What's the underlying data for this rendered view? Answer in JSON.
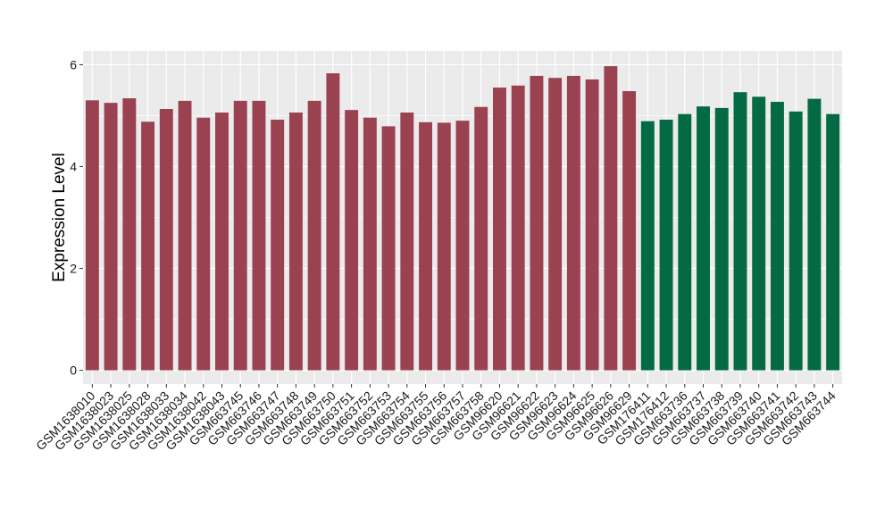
{
  "chart_data": {
    "type": "bar",
    "title": "",
    "xlabel": "",
    "ylabel": "Expression Level",
    "ylim": [
      -0.27,
      6.27
    ],
    "yticks": [
      0,
      2,
      4,
      6
    ],
    "grid": true,
    "legend": "none",
    "colors": {
      "group1": "#9b4250",
      "group2": "#046a43",
      "panel": "#ebebeb",
      "grid": "#ffffff"
    },
    "categories": [
      "GSM1638010",
      "GSM1638023",
      "GSM1638025",
      "GSM1638028",
      "GSM1638033",
      "GSM1638034",
      "GSM1638042",
      "GSM1638043",
      "GSM663745",
      "GSM663746",
      "GSM663747",
      "GSM663748",
      "GSM663749",
      "GSM663750",
      "GSM663751",
      "GSM663752",
      "GSM663753",
      "GSM663754",
      "GSM663755",
      "GSM663756",
      "GSM663757",
      "GSM663758",
      "GSM96620",
      "GSM96621",
      "GSM96622",
      "GSM96623",
      "GSM96624",
      "GSM96625",
      "GSM96626",
      "GSM96629",
      "GSM176411",
      "GSM176412",
      "GSM663736",
      "GSM663737",
      "GSM663738",
      "GSM663739",
      "GSM663740",
      "GSM663741",
      "GSM663742",
      "GSM663743",
      "GSM663744"
    ],
    "values": [
      5.3,
      5.25,
      5.34,
      4.88,
      5.13,
      5.29,
      4.96,
      5.06,
      5.29,
      5.29,
      4.92,
      5.06,
      5.29,
      5.83,
      5.11,
      4.96,
      4.79,
      5.06,
      4.87,
      4.86,
      4.9,
      5.17,
      5.55,
      5.59,
      5.78,
      5.74,
      5.78,
      5.71,
      5.97,
      5.48,
      4.89,
      4.92,
      5.03,
      5.18,
      5.15,
      5.46,
      5.37,
      5.27,
      5.08,
      5.33,
      5.03
    ],
    "groups": [
      1,
      1,
      1,
      1,
      1,
      1,
      1,
      1,
      1,
      1,
      1,
      1,
      1,
      1,
      1,
      1,
      1,
      1,
      1,
      1,
      1,
      1,
      1,
      1,
      1,
      1,
      1,
      1,
      1,
      1,
      2,
      2,
      2,
      2,
      2,
      2,
      2,
      2,
      2,
      2,
      2
    ]
  }
}
